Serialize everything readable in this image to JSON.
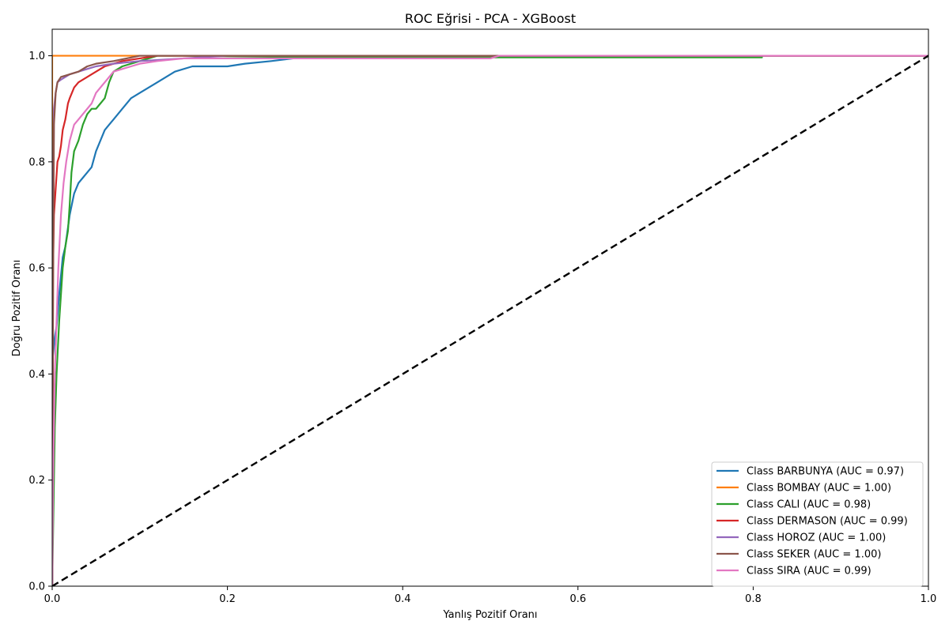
{
  "chart_data": {
    "type": "line",
    "title": "ROC Eğrisi - PCA - XGBoost",
    "xlabel": "Yanlış Pozitif Oranı",
    "ylabel": "Doğru Pozitif Oranı",
    "xlim": [
      0,
      1
    ],
    "ylim": [
      0,
      1.05
    ],
    "xticks": [
      "0.0",
      "0.2",
      "0.4",
      "0.6",
      "0.8",
      "1.0"
    ],
    "yticks": [
      "0.0",
      "0.2",
      "0.4",
      "0.6",
      "0.8",
      "1.0"
    ],
    "grid": false,
    "legend_position": "bottom-right",
    "series": [
      {
        "name": "Class BARBUNYA (AUC = 0.97)",
        "color": "#1f77b4",
        "x": [
          0,
          0,
          0.003,
          0.005,
          0.008,
          0.012,
          0.015,
          0.02,
          0.025,
          0.03,
          0.035,
          0.04,
          0.045,
          0.05,
          0.055,
          0.06,
          0.065,
          0.07,
          0.08,
          0.09,
          0.1,
          0.12,
          0.14,
          0.16,
          0.2,
          0.22,
          0.25,
          0.3,
          0.5,
          1
        ],
        "y": [
          0,
          0.42,
          0.47,
          0.49,
          0.55,
          0.62,
          0.64,
          0.7,
          0.74,
          0.76,
          0.77,
          0.78,
          0.79,
          0.82,
          0.84,
          0.86,
          0.87,
          0.88,
          0.9,
          0.92,
          0.93,
          0.95,
          0.97,
          0.98,
          0.98,
          0.985,
          0.99,
          1.0,
          1.0,
          1.0
        ]
      },
      {
        "name": "Class BOMBAY (AUC = 1.00)",
        "color": "#ff7f0e",
        "x": [
          0,
          0,
          0.1,
          1
        ],
        "y": [
          0,
          1.0,
          1.0,
          1.0
        ]
      },
      {
        "name": "Class CALI (AUC = 0.98)",
        "color": "#2ca02c",
        "x": [
          0,
          0.003,
          0.005,
          0.008,
          0.01,
          0.012,
          0.015,
          0.018,
          0.02,
          0.022,
          0.025,
          0.03,
          0.035,
          0.04,
          0.045,
          0.05,
          0.055,
          0.06,
          0.065,
          0.07,
          0.08,
          0.1,
          0.12,
          0.15,
          0.3,
          0.5,
          0.81,
          0.81,
          1
        ],
        "y": [
          0,
          0.3,
          0.4,
          0.5,
          0.55,
          0.6,
          0.64,
          0.67,
          0.72,
          0.78,
          0.82,
          0.84,
          0.87,
          0.89,
          0.9,
          0.9,
          0.91,
          0.92,
          0.95,
          0.97,
          0.98,
          0.99,
          1.0,
          1.0,
          0.997,
          0.997,
          0.997,
          1.0,
          1.0
        ]
      },
      {
        "name": "Class DERMASON (AUC = 0.99)",
        "color": "#d62728",
        "x": [
          0,
          0.001,
          0.002,
          0.004,
          0.006,
          0.008,
          0.01,
          0.012,
          0.015,
          0.018,
          0.02,
          0.025,
          0.03,
          0.035,
          0.04,
          0.05,
          0.06,
          0.07,
          0.08,
          0.1,
          0.12,
          0.14,
          0.17,
          1
        ],
        "y": [
          0,
          0.6,
          0.7,
          0.75,
          0.8,
          0.81,
          0.83,
          0.86,
          0.88,
          0.91,
          0.92,
          0.94,
          0.95,
          0.955,
          0.96,
          0.97,
          0.98,
          0.985,
          0.99,
          0.995,
          1.0,
          1.0,
          1.0,
          1.0
        ]
      },
      {
        "name": "Class HOROZ (AUC = 1.00)",
        "color": "#9467bd",
        "x": [
          0,
          0,
          0.002,
          0.004,
          0.006,
          0.01,
          0.015,
          0.02,
          0.03,
          0.04,
          0.05,
          0.07,
          0.1,
          0.15,
          0.2,
          0.33,
          1
        ],
        "y": [
          0,
          0.4,
          0.9,
          0.93,
          0.95,
          0.955,
          0.96,
          0.965,
          0.97,
          0.975,
          0.98,
          0.985,
          0.99,
          0.995,
          1.0,
          1.0,
          1.0
        ]
      },
      {
        "name": "Class SEKER (AUC = 1.00)",
        "color": "#8c564b",
        "x": [
          0,
          0.001,
          0.002,
          0.004,
          0.006,
          0.01,
          0.02,
          0.03,
          0.04,
          0.05,
          0.07,
          0.1,
          0.13,
          0.2,
          1
        ],
        "y": [
          0,
          0.55,
          0.87,
          0.93,
          0.95,
          0.96,
          0.965,
          0.97,
          0.98,
          0.985,
          0.99,
          1.0,
          1.0,
          1.0,
          1.0
        ]
      },
      {
        "name": "Class SIRA (AUC = 0.99)",
        "color": "#e377c2",
        "x": [
          0,
          0.001,
          0.002,
          0.003,
          0.005,
          0.007,
          0.01,
          0.013,
          0.016,
          0.02,
          0.025,
          0.03,
          0.035,
          0.04,
          0.045,
          0.05,
          0.055,
          0.06,
          0.065,
          0.07,
          0.08,
          0.09,
          0.1,
          0.12,
          0.15,
          0.2,
          0.5,
          0.51,
          1
        ],
        "y": [
          0,
          0.2,
          0.3,
          0.4,
          0.5,
          0.6,
          0.7,
          0.76,
          0.8,
          0.84,
          0.87,
          0.88,
          0.89,
          0.9,
          0.91,
          0.93,
          0.94,
          0.95,
          0.96,
          0.97,
          0.975,
          0.98,
          0.985,
          0.99,
          0.995,
          0.995,
          0.995,
          1.0,
          1.0
        ]
      }
    ],
    "reference_line": {
      "x": [
        0,
        1
      ],
      "y": [
        0,
        1
      ],
      "color": "#000000",
      "style": "dashed"
    }
  }
}
